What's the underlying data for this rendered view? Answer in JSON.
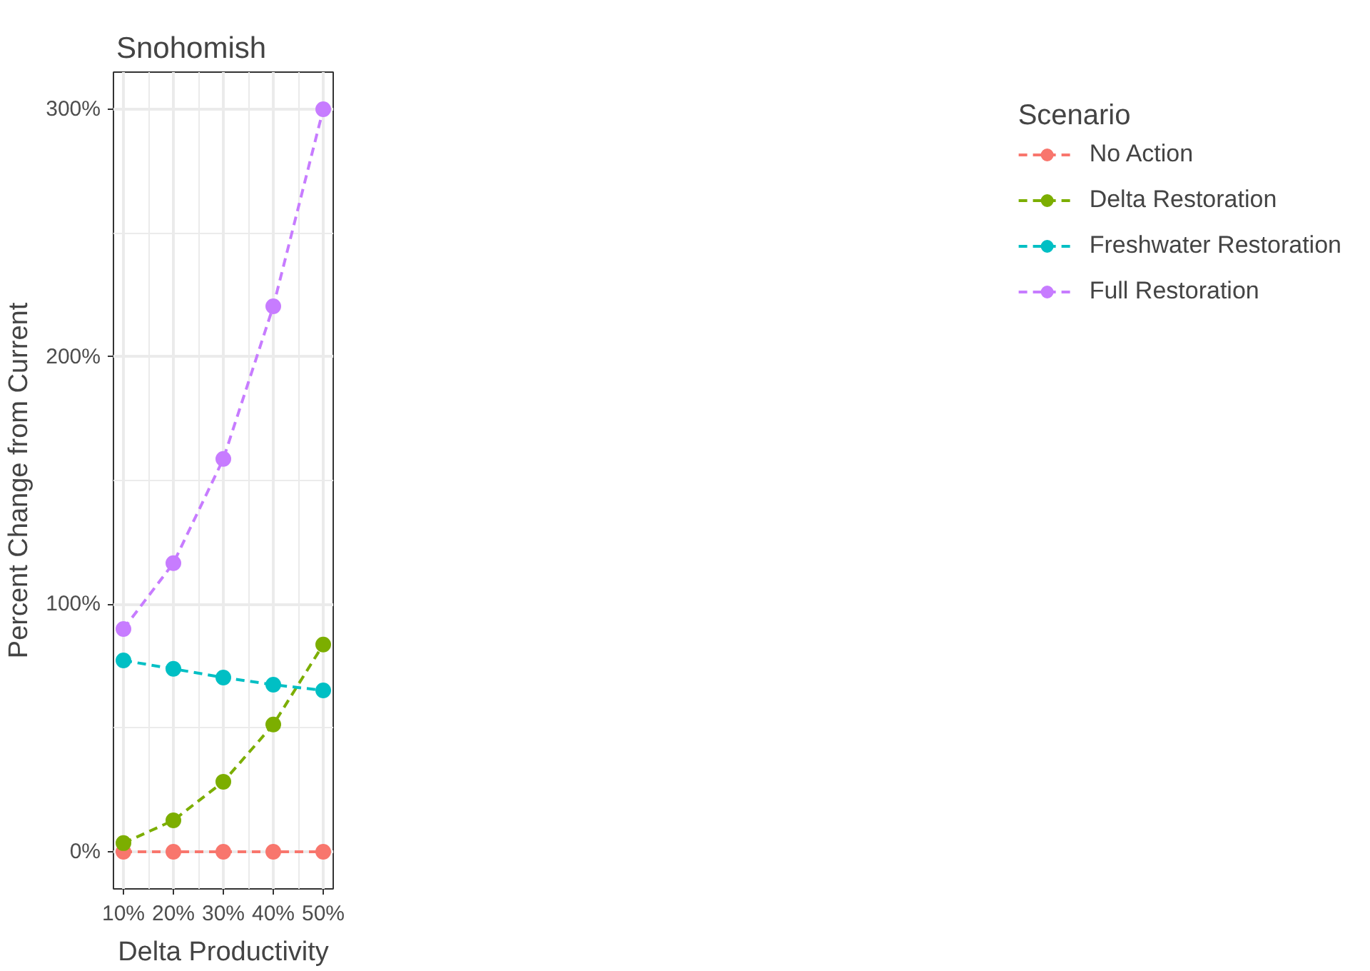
{
  "chart_data": {
    "type": "line",
    "title": "Snohomish",
    "xlabel": "Delta Productivity",
    "ylabel": "Percent Change from Current",
    "legend_title": "Scenario",
    "x": [
      10,
      20,
      30,
      40,
      50
    ],
    "series": [
      {
        "name": "No Action",
        "color": "#f8766d",
        "values": [
          0,
          0,
          0,
          0,
          0
        ]
      },
      {
        "name": "Delta Restoration",
        "color": "#7cae00",
        "values": [
          3.5,
          12.7,
          28.3,
          51.4,
          83.7
        ]
      },
      {
        "name": "Freshwater Restoration",
        "color": "#00bfc4",
        "values": [
          77.3,
          73.9,
          70.4,
          67.5,
          65.2
        ]
      },
      {
        "name": "Full Restoration",
        "color": "#c77cff",
        "values": [
          90,
          116.6,
          158.7,
          220.4,
          300
        ]
      }
    ],
    "xlim": [
      8,
      52
    ],
    "ylim": [
      -15,
      315
    ],
    "xticks": [
      {
        "value": 10,
        "label": "10%"
      },
      {
        "value": 20,
        "label": "20%"
      },
      {
        "value": 30,
        "label": "30%"
      },
      {
        "value": 40,
        "label": "40%"
      },
      {
        "value": 50,
        "label": "50%"
      }
    ],
    "yticks": [
      {
        "value": 0,
        "label": "0%"
      },
      {
        "value": 100,
        "label": "100%"
      },
      {
        "value": 200,
        "label": "200%"
      },
      {
        "value": 300,
        "label": "300%"
      }
    ],
    "grid": true,
    "legend": "right",
    "marker": "circle",
    "line_style": "dashed"
  }
}
